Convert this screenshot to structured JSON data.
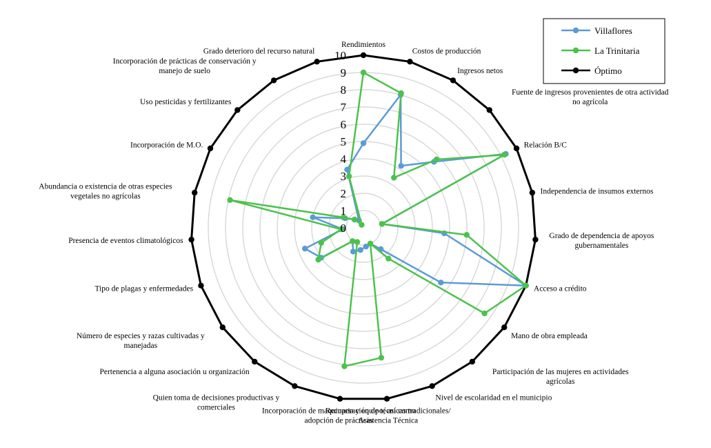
{
  "chart_data": {
    "type": "radar",
    "title": "",
    "categories": [
      "Rendimientos",
      "Costos de producción",
      "Ingresos netos",
      "Fuente de ingresos provenientes de otra actividad\nno agrícola",
      "Relación B/C",
      "Independencia de insumos externos",
      "Grado de dependencia de apoyos\ngubernamentales",
      "Acceso a crédito",
      "Mano de obra empleada",
      "Participación de las mujeres en actividades\nagrícolas",
      "Nivel de escolaridad en el municipio",
      "Recuperación de técnicas tradicionales/\nAsistencia Técnica",
      "Incorporación de maquinaria y equipo; así como\nadopción de prácticas",
      "Quien  toma de decisiones productivas y\ncomerciales",
      "Pertenencia a alguna asociación u organización",
      "Número de especies y razas cultivadas y\nmanejadas",
      "Tipo de plagas y enfermedades",
      "Presencia de eventos climatológicos",
      "Abundancia o existencia  de otras especies\nvegetales no agrícolas",
      "Incorporación de M.O.",
      "Uso pesticidas y fertilizantes",
      "Incorporación de prácticas de conservación y\nmanejo de suelo",
      "Grado deterioro del recurso natural"
    ],
    "ticks": [
      "0",
      "1",
      "2",
      "3",
      "4",
      "5",
      "6",
      "7",
      "8",
      "9",
      "10"
    ],
    "rlim": [
      0,
      10
    ],
    "grid": true,
    "legend_position": "top-right",
    "series": [
      {
        "name": "Villaflores",
        "color": "#5b9bd5",
        "values": [
          4.9,
          8.0,
          4.2,
          5.6,
          9.3,
          1.1,
          4.7,
          10.0,
          5.5,
          1.6,
          1.0,
          1.1,
          1.3,
          1.5,
          1.0,
          3.0,
          3.6,
          1.2,
          3.0,
          1.2,
          0.7,
          0.5,
          3.5
        ]
      },
      {
        "name": "La Trinitaria",
        "color": "#4cc24c",
        "values": [
          9.0,
          8.1,
          3.4,
          5.8,
          9.2,
          1.1,
          6.0,
          10.0,
          8.6,
          2.3,
          1.0,
          7.6,
          8.1,
          0.9,
          1.0,
          3.2,
          2.6,
          1.3,
          7.9,
          1.3,
          0.7,
          0.2,
          3.1
        ]
      },
      {
        "name": "Óptimo",
        "color": "#000000",
        "values": [
          10,
          10,
          10,
          10,
          10,
          10,
          10,
          10,
          10,
          10,
          10,
          10,
          10,
          10,
          10,
          10,
          10,
          10,
          10,
          10,
          10,
          10,
          10
        ]
      }
    ]
  }
}
